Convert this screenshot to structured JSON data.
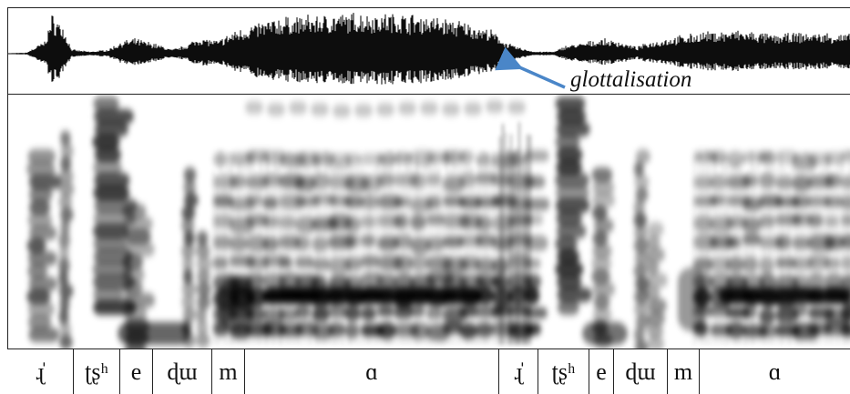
{
  "annotation": {
    "label": "glottalisation",
    "arrow_color": "#4a86c8"
  },
  "segments": [
    {
      "label": "ɻ̍"
    },
    {
      "label": "ʈʂʰ"
    },
    {
      "label": "e"
    },
    {
      "label": "ɖɯ"
    },
    {
      "label": "m"
    },
    {
      "label": "ɑ"
    },
    {
      "label": "ɻ̍"
    },
    {
      "label": "ʈʂʰ"
    },
    {
      "label": "e"
    },
    {
      "label": "ɖɯ"
    },
    {
      "label": "m"
    },
    {
      "label": "ɑ"
    }
  ],
  "colors": {
    "ink": "#111111",
    "frame": "#222222",
    "background": "#ffffff"
  }
}
